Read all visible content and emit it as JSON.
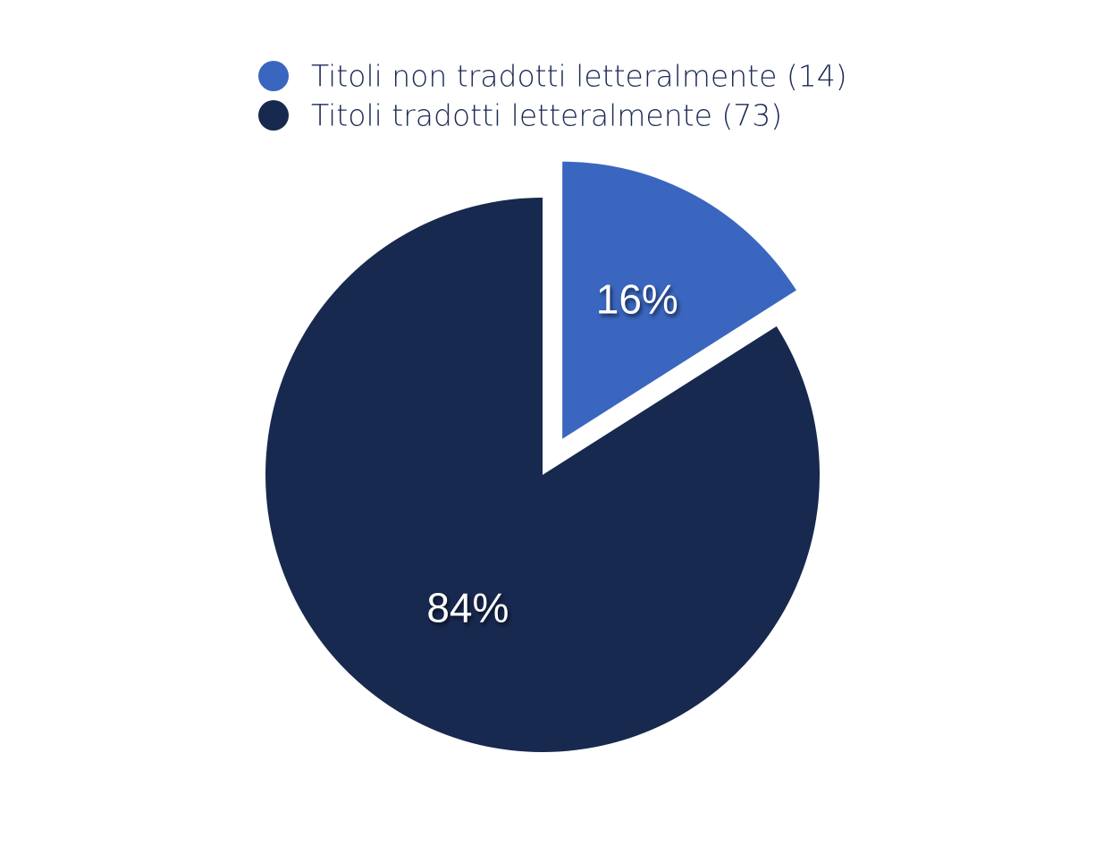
{
  "chart_data": {
    "type": "pie",
    "categories": [
      "Titoli non tradotti letteralmente (14)",
      "Titoli tradotti letteralmente (73)"
    ],
    "values": [
      16,
      84
    ],
    "value_labels": [
      "16%",
      "84%"
    ],
    "colors": [
      "#3a66bf",
      "#182950"
    ]
  }
}
